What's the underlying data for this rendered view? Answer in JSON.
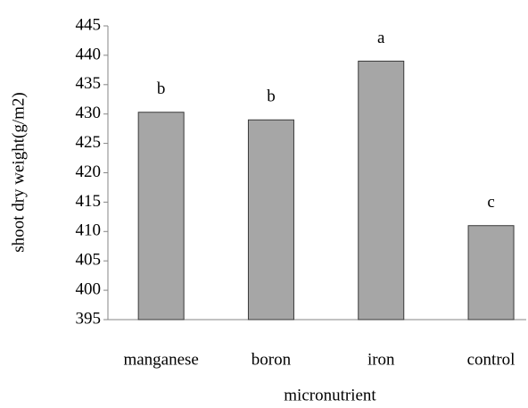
{
  "chart_data": {
    "type": "bar",
    "x_label": "micronutrient",
    "y_label": "shoot dry weight(g/m2)",
    "categories": [
      "manganese",
      "boron",
      "iron",
      "control"
    ],
    "values": [
      430.3,
      429,
      439,
      411
    ],
    "annotations": [
      "b",
      "b",
      "a",
      "c"
    ],
    "color": "#a6a6a6",
    "ylim": [
      395,
      445
    ],
    "yticks": [
      395,
      400,
      405,
      410,
      415,
      420,
      425,
      430,
      435,
      440,
      445
    ],
    "grid": false
  }
}
